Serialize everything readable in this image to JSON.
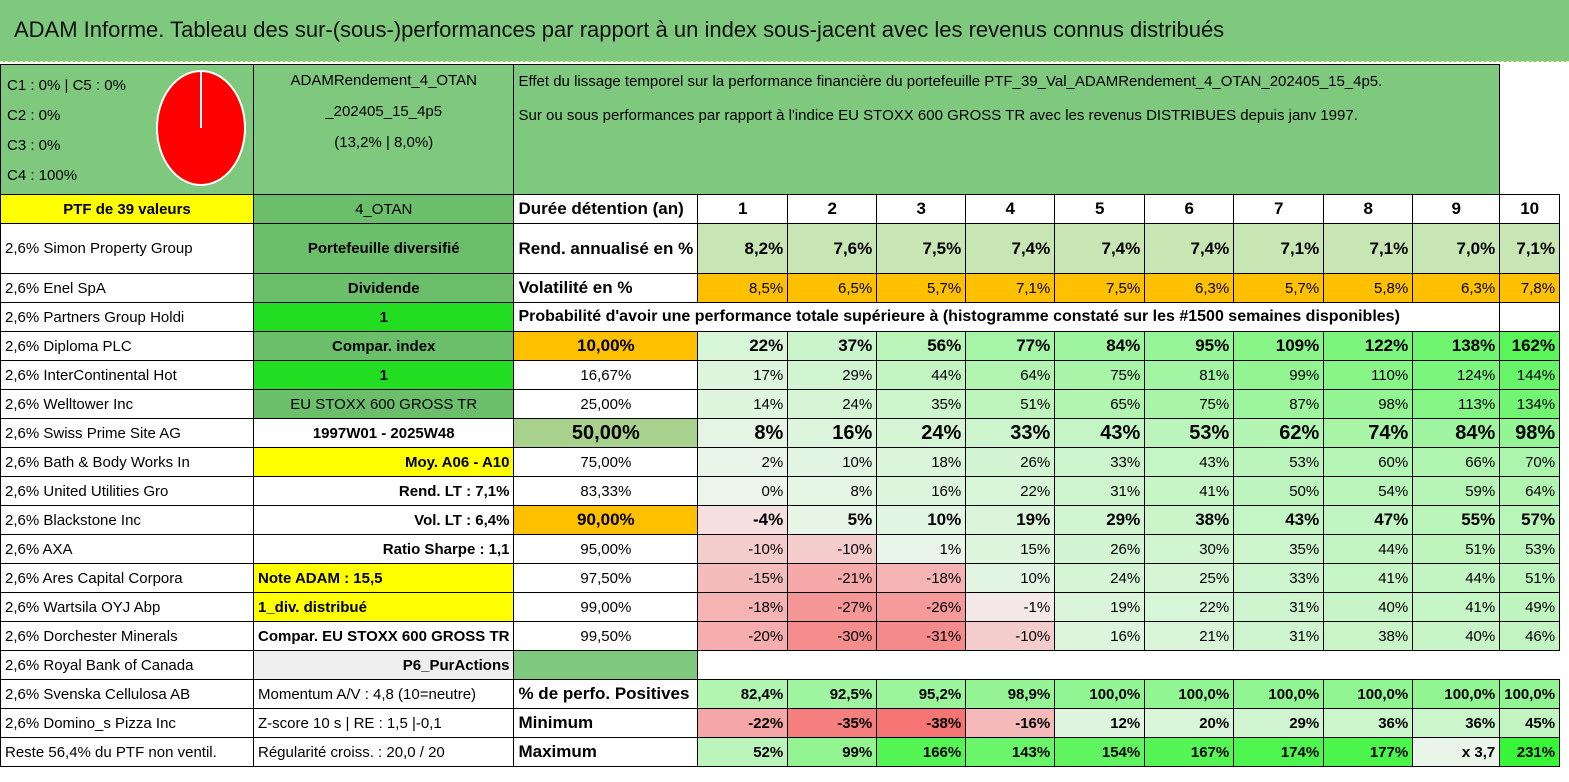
{
  "title": "ADAM Informe. Tableau des sur-(sous-)performances par rapport à un index sous-jacent avec les revenus connus distribués",
  "pie_legend": [
    "C1 : 0% | C5 : 0%",
    "C2 : 0%",
    "C3 : 0%",
    "C4 : 100%"
  ],
  "pie_color": "#ff0000",
  "portfolio_name": [
    "ADAMRendement_4_OTAN",
    "_202405_15_4p5",
    "(13,2% | 8,0%)"
  ],
  "description": [
    "Effet du lissage temporel sur la performance financière du portefeuille PTF_39_Val_ADAMRendement_4_OTAN_202405_15_4p5.",
    "Sur ou sous performances par rapport à l'indice EU STOXX 600 GROSS TR avec les revenus DISTRIBUES depuis janv 1997."
  ],
  "ptf_label": "PTF de 39 valeurs",
  "code": "4_OTAN",
  "holdings": [
    "2,6% Simon Property Group",
    "2,6% Enel SpA",
    "2,6% Partners Group Holdi",
    "2,6% Diploma PLC",
    "2,6% InterContinental Hot",
    "2,6% Welltower Inc",
    "2,6% Swiss Prime Site AG",
    "2,6% Bath & Body Works In",
    "2,6% United Utilities Gro",
    "2,6% Blackstone Inc",
    "2,6% AXA",
    "2,6% Ares Capital Corpora",
    "2,6% Wartsila OYJ Abp",
    "2,6% Dorchester Minerals",
    "2,6% Royal Bank of Canada",
    "2,6% Svenska Cellulosa AB",
    "2,6% Domino_s Pizza Inc",
    "Reste 56,4% du PTF non ventil."
  ],
  "info": [
    "Portefeuille diversifié",
    "Dividende",
    "1",
    "Compar. index",
    "1",
    "EU STOXX 600 GROSS TR",
    "1997W01 - 2025W48",
    "Moy. A06 - A10",
    "Rend. LT : 7,1%",
    "Vol. LT : 6,4%",
    "Ratio Sharpe : 1,1",
    "Note ADAM : 15,5",
    "1_div. distribué",
    "Compar. EU STOXX 600 GROSS TR",
    "P6_PurActions",
    "Momentum A/V : 4,8 (10=neutre)",
    "Z-score 10 s | RE : 1,5 |-0,1",
    "Régularité croiss. : 20,0 / 20"
  ],
  "duration_label": "Durée détention (an)",
  "years": [
    "1",
    "2",
    "3",
    "4",
    "5",
    "6",
    "7",
    "8",
    "9",
    "10"
  ],
  "rend_label": "Rend. annualisé en %",
  "rend": [
    "8,2%",
    "7,6%",
    "7,5%",
    "7,4%",
    "7,4%",
    "7,4%",
    "7,1%",
    "7,1%",
    "7,0%",
    "7,1%"
  ],
  "vol_label": "Volatilité en %",
  "vol": [
    "8,5%",
    "6,5%",
    "5,7%",
    "7,1%",
    "7,5%",
    "6,3%",
    "5,7%",
    "5,8%",
    "6,3%",
    "7,8%"
  ],
  "prob_title": "Probabilité d'avoir une performance totale supérieure à (histogramme constaté sur les #1500 semaines disponibles)",
  "prob_rows": [
    {
      "p": "10,00%",
      "v": [
        "22%",
        "37%",
        "56%",
        "77%",
        "84%",
        "95%",
        "109%",
        "122%",
        "138%",
        "162%"
      ]
    },
    {
      "p": "16,67%",
      "v": [
        "17%",
        "29%",
        "44%",
        "64%",
        "75%",
        "81%",
        "99%",
        "110%",
        "124%",
        "144%"
      ]
    },
    {
      "p": "25,00%",
      "v": [
        "14%",
        "24%",
        "35%",
        "51%",
        "65%",
        "75%",
        "87%",
        "98%",
        "113%",
        "134%"
      ]
    },
    {
      "p": "50,00%",
      "v": [
        "8%",
        "16%",
        "24%",
        "33%",
        "43%",
        "53%",
        "62%",
        "74%",
        "84%",
        "98%"
      ]
    },
    {
      "p": "75,00%",
      "v": [
        "2%",
        "10%",
        "18%",
        "26%",
        "33%",
        "43%",
        "53%",
        "60%",
        "66%",
        "70%"
      ]
    },
    {
      "p": "83,33%",
      "v": [
        "0%",
        "8%",
        "16%",
        "22%",
        "31%",
        "41%",
        "50%",
        "54%",
        "59%",
        "64%"
      ]
    },
    {
      "p": "90,00%",
      "v": [
        "-4%",
        "5%",
        "10%",
        "19%",
        "29%",
        "38%",
        "43%",
        "47%",
        "55%",
        "57%"
      ]
    },
    {
      "p": "95,00%",
      "v": [
        "-10%",
        "-10%",
        "1%",
        "15%",
        "26%",
        "30%",
        "35%",
        "44%",
        "51%",
        "53%"
      ]
    },
    {
      "p": "97,50%",
      "v": [
        "-15%",
        "-21%",
        "-18%",
        "10%",
        "24%",
        "25%",
        "33%",
        "41%",
        "44%",
        "51%"
      ]
    },
    {
      "p": "99,00%",
      "v": [
        "-18%",
        "-27%",
        "-26%",
        "-1%",
        "19%",
        "22%",
        "31%",
        "40%",
        "41%",
        "49%"
      ]
    },
    {
      "p": "99,50%",
      "v": [
        "-20%",
        "-30%",
        "-31%",
        "-10%",
        "16%",
        "21%",
        "31%",
        "38%",
        "40%",
        "46%"
      ]
    }
  ],
  "pos_label": "% de perfo. Positives",
  "pos": [
    "82,4%",
    "92,5%",
    "95,2%",
    "98,9%",
    "100,0%",
    "100,0%",
    "100,0%",
    "100,0%",
    "100,0%",
    "100,0%"
  ],
  "min_label": "Minimum",
  "min": [
    "-22%",
    "-35%",
    "-38%",
    "-16%",
    "12%",
    "20%",
    "29%",
    "36%",
    "36%",
    "45%"
  ],
  "max_label": "Maximum",
  "max": [
    "52%",
    "99%",
    "166%",
    "143%",
    "154%",
    "167%",
    "174%",
    "177%",
    "x 3,7",
    "231%"
  ]
}
